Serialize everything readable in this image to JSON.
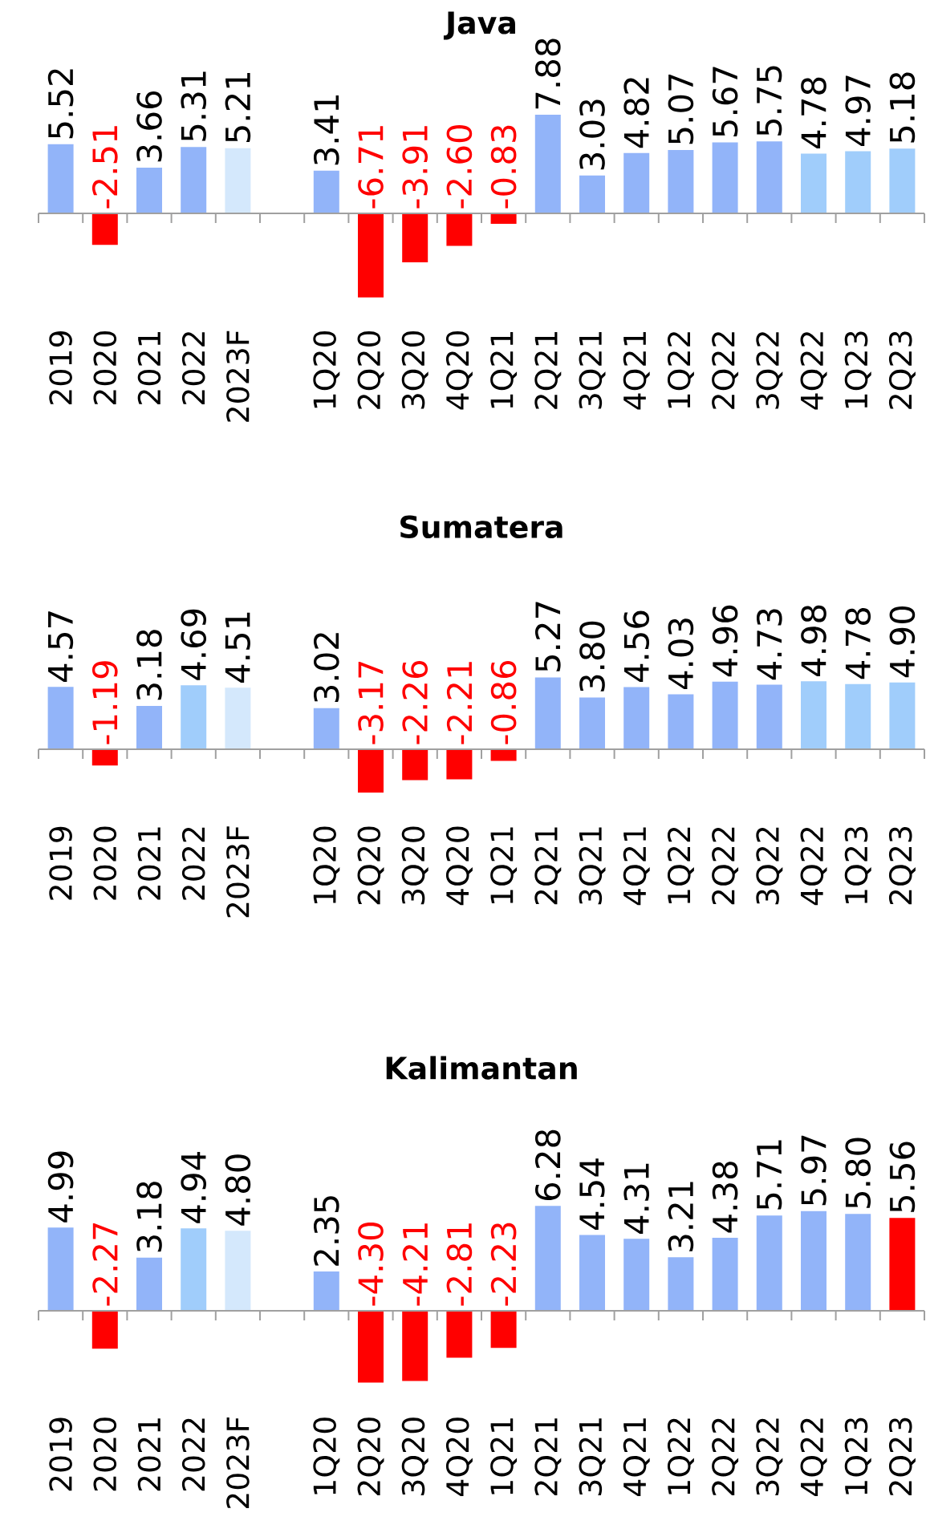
{
  "chart_data": [
    {
      "type": "bar",
      "title": "Java",
      "categories": [
        "2019",
        "2020",
        "2021",
        "2022",
        "2023F",
        null,
        "1Q20",
        "2Q20",
        "3Q20",
        "4Q20",
        "1Q21",
        "2Q21",
        "3Q21",
        "4Q21",
        "1Q22",
        "2Q22",
        "3Q22",
        "4Q22",
        "1Q23",
        "2Q23"
      ],
      "values": [
        5.52,
        -2.51,
        3.66,
        5.31,
        5.21,
        null,
        3.41,
        -6.71,
        -3.91,
        -2.6,
        -0.83,
        7.88,
        3.03,
        4.82,
        5.07,
        5.67,
        5.75,
        4.78,
        4.97,
        5.18
      ],
      "colors": [
        "#92b4f9",
        "#ff0000",
        "#92b4f9",
        "#92b4f9",
        "#d4e8fc",
        null,
        "#92b4f9",
        "#ff0000",
        "#ff0000",
        "#ff0000",
        "#ff0000",
        "#92b4f9",
        "#92b4f9",
        "#92b4f9",
        "#92b4f9",
        "#92b4f9",
        "#92b4f9",
        "#a0cdfb",
        "#a0cdfb",
        "#a0cdfb"
      ],
      "value_labels": [
        "5.52",
        "-2.51",
        "3.66",
        "5.31",
        "5.21",
        null,
        "3.41",
        "-6.71",
        "-3.91",
        "-2.60",
        "-0.83",
        "7.88",
        "3.03",
        "4.82",
        "5.07",
        "5.67",
        "5.75",
        "4.78",
        "4.97",
        "5.18"
      ]
    },
    {
      "type": "bar",
      "title": "Sumatera",
      "categories": [
        "2019",
        "2020",
        "2021",
        "2022",
        "2023F",
        null,
        "1Q20",
        "2Q20",
        "3Q20",
        "4Q20",
        "1Q21",
        "2Q21",
        "3Q21",
        "4Q21",
        "1Q22",
        "2Q22",
        "3Q22",
        "4Q22",
        "1Q23",
        "2Q23"
      ],
      "values": [
        4.57,
        -1.19,
        3.18,
        4.69,
        4.51,
        null,
        3.02,
        -3.17,
        -2.26,
        -2.21,
        -0.86,
        5.27,
        3.8,
        4.56,
        4.03,
        4.96,
        4.73,
        4.98,
        4.78,
        4.9
      ],
      "colors": [
        "#92b4f9",
        "#ff0000",
        "#92b4f9",
        "#a0cdfb",
        "#d4e8fc",
        null,
        "#92b4f9",
        "#ff0000",
        "#ff0000",
        "#ff0000",
        "#ff0000",
        "#92b4f9",
        "#92b4f9",
        "#92b4f9",
        "#92b4f9",
        "#92b4f9",
        "#92b4f9",
        "#a0cdfb",
        "#a0cdfb",
        "#a0cdfb"
      ],
      "value_labels": [
        "4.57",
        "-1.19",
        "3.18",
        "4.69",
        "4.51",
        null,
        "3.02",
        "-3.17",
        "-2.26",
        "-2.21",
        "-0.86",
        "5.27",
        "3.80",
        "4.56",
        "4.03",
        "4.96",
        "4.73",
        "4.98",
        "4.78",
        "4.90"
      ]
    },
    {
      "type": "bar",
      "title": "Kalimantan",
      "categories": [
        "2019",
        "2020",
        "2021",
        "2022",
        "2023F",
        null,
        "1Q20",
        "2Q20",
        "3Q20",
        "4Q20",
        "1Q21",
        "2Q21",
        "3Q21",
        "4Q21",
        "1Q22",
        "2Q22",
        "3Q22",
        "4Q22",
        "1Q23",
        "2Q23"
      ],
      "values": [
        4.99,
        -2.27,
        3.18,
        4.94,
        4.8,
        null,
        2.35,
        -4.3,
        -4.21,
        -2.81,
        -2.23,
        6.28,
        4.54,
        4.31,
        3.21,
        4.38,
        5.71,
        5.97,
        5.8,
        5.56
      ],
      "colors": [
        "#92b4f9",
        "#ff0000",
        "#92b4f9",
        "#a0cdfb",
        "#d4e8fc",
        null,
        "#92b4f9",
        "#ff0000",
        "#ff0000",
        "#ff0000",
        "#ff0000",
        "#92b4f9",
        "#92b4f9",
        "#92b4f9",
        "#92b4f9",
        "#92b4f9",
        "#92b4f9",
        "#92b4f9",
        "#92b4f9",
        "#ff0000"
      ],
      "value_labels": [
        "4.99",
        "-2.27",
        "3.18",
        "4.94",
        "4.80",
        null,
        "2.35",
        "-4.30",
        "-4.21",
        "-2.81",
        "-2.23",
        "6.28",
        "4.54",
        "4.31",
        "3.21",
        "4.38",
        "5.71",
        "5.97",
        "5.80",
        "5.56"
      ]
    }
  ]
}
